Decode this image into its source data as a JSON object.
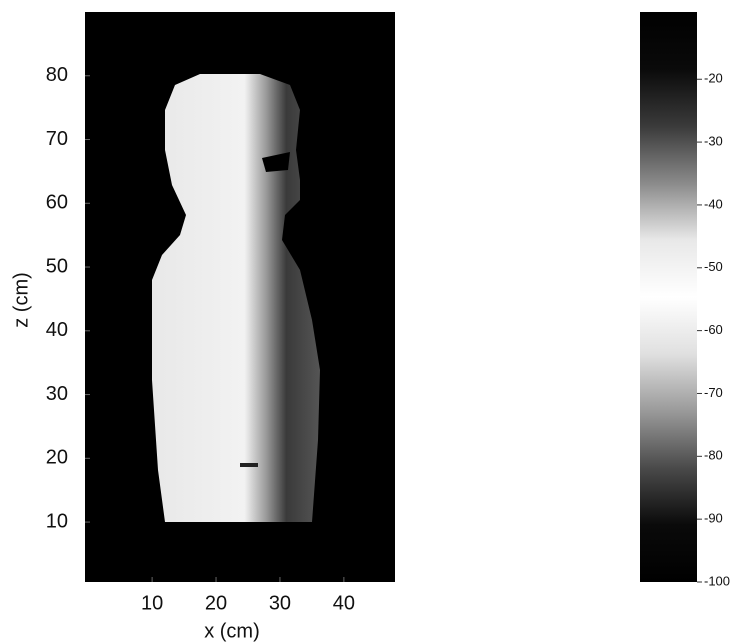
{
  "chart_data": {
    "type": "heatmap",
    "xlabel": "x (cm)",
    "ylabel": "z (cm)",
    "xlim": [
      -0.5,
      48
    ],
    "xticks": [
      10,
      20,
      30,
      40
    ],
    "ylim": [
      0.6,
      90
    ],
    "yticks": [
      10,
      20,
      30,
      40,
      50,
      60,
      70,
      80
    ],
    "colorbar": {
      "lim": [
        -100,
        -9.3
      ],
      "ticks": [
        -20,
        -30,
        -40,
        -50,
        -60,
        -70,
        -80,
        -90,
        -100
      ],
      "colormap": [
        "#000000",
        "#0a0a0a",
        "#3a3a3a",
        "#8a8a8a",
        "#e8e8e8",
        "#ffffff",
        "#e0e0e0",
        "#9a9a9a",
        "#4a4a4a",
        "#0a0a0a",
        "#000000"
      ]
    },
    "background": "#000000"
  }
}
